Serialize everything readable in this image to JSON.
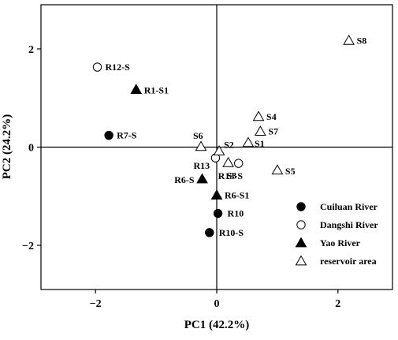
{
  "chart_data": {
    "type": "scatter",
    "xlabel": "PC1 (42.2%)",
    "ylabel": "PC2 (24.2%)",
    "xlim": [
      -2.9,
      2.9
    ],
    "ylim": [
      -2.9,
      2.9
    ],
    "xticks": [
      -2,
      0,
      2
    ],
    "yticks": [
      -2,
      0,
      2
    ],
    "reference_lines": {
      "x": 0,
      "y": 0
    },
    "grid": false,
    "legend_position": "bottom-right",
    "series": [
      {
        "name": "Cuiluan River",
        "marker": "filled-circle",
        "points": [
          {
            "label": "R7-S",
            "x": -1.78,
            "y": 0.24
          },
          {
            "label": "R10",
            "x": 0.02,
            "y": -1.35
          },
          {
            "label": "R10-S",
            "x": -0.12,
            "y": -1.74
          }
        ]
      },
      {
        "name": "Dangshi River",
        "marker": "open-circle",
        "points": [
          {
            "label": "R12-S",
            "x": -1.97,
            "y": 1.63
          },
          {
            "label": "R13",
            "x": -0.02,
            "y": -0.22
          },
          {
            "label": "R13-S",
            "x": 0.36,
            "y": -0.33
          }
        ]
      },
      {
        "name": "Yao River",
        "marker": "filled-triangle",
        "points": [
          {
            "label": "R1-S1",
            "x": -1.33,
            "y": 1.17
          },
          {
            "label": "R6-S",
            "x": -0.24,
            "y": -0.65
          },
          {
            "label": "R6-S1",
            "x": 0.0,
            "y": -0.98
          }
        ]
      },
      {
        "name": "reservoir area",
        "marker": "open-triangle",
        "points": [
          {
            "label": "S8",
            "x": 2.18,
            "y": 2.17
          },
          {
            "label": "S4",
            "x": 0.69,
            "y": 0.62
          },
          {
            "label": "S7",
            "x": 0.72,
            "y": 0.32
          },
          {
            "label": "S1",
            "x": 0.52,
            "y": 0.09
          },
          {
            "label": "S6",
            "x": -0.26,
            "y": 0.01
          },
          {
            "label": "S2",
            "x": 0.04,
            "y": -0.08
          },
          {
            "label": "S3",
            "x": 0.19,
            "y": -0.32
          },
          {
            "label": "S5",
            "x": 1.0,
            "y": -0.47
          }
        ]
      }
    ]
  }
}
